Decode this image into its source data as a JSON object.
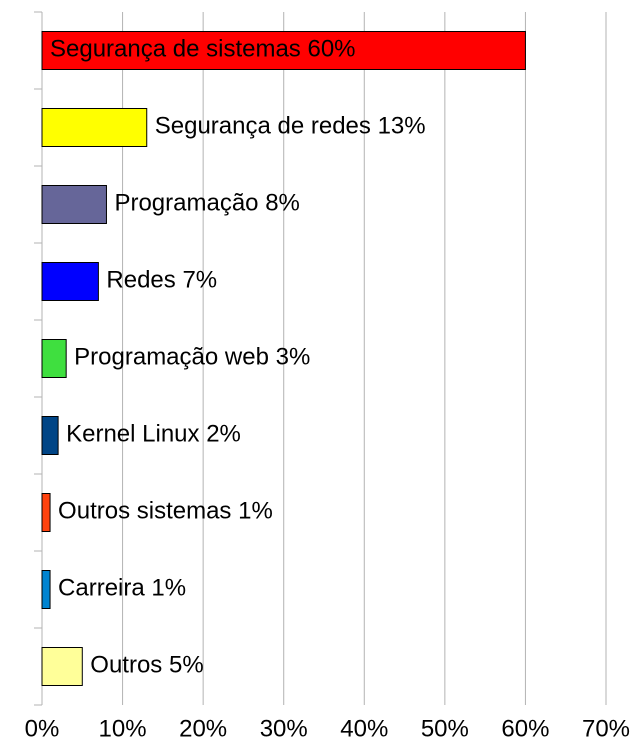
{
  "chart_data": {
    "type": "bar",
    "orientation": "horizontal",
    "categories": [
      "Segurança de sistemas",
      "Segurança de redes",
      "Programação",
      "Redes",
      "Programação web",
      "Kernel Linux",
      "Outros sistemas",
      "Carreira",
      "Outros"
    ],
    "values": [
      60,
      13,
      8,
      7,
      3,
      2,
      1,
      1,
      5
    ],
    "value_labels": [
      "60%",
      "13%",
      "8%",
      "7%",
      "3%",
      "2%",
      "1%",
      "1%",
      "5%"
    ],
    "colors": [
      "#ff0000",
      "#ffff00",
      "#666699",
      "#0000ff",
      "#3fdf3f",
      "#004586",
      "#ff420e",
      "#0084d1",
      "#ffff99"
    ],
    "xlim": [
      0,
      70
    ],
    "xticks": [
      {
        "value": 0,
        "label": "0%"
      },
      {
        "value": 10,
        "label": "10%"
      },
      {
        "value": 20,
        "label": "20%"
      },
      {
        "value": 30,
        "label": "30%"
      },
      {
        "value": 40,
        "label": "40%"
      },
      {
        "value": 50,
        "label": "50%"
      },
      {
        "value": 60,
        "label": "60%"
      },
      {
        "value": 70,
        "label": "70%"
      }
    ],
    "grid": true
  }
}
